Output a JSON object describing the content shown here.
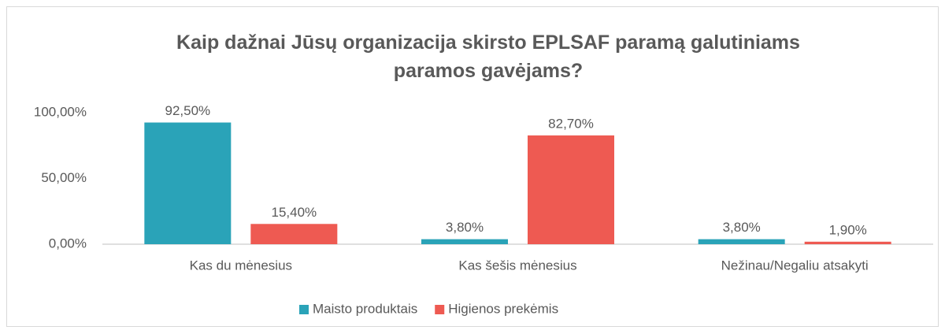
{
  "chart_data": {
    "type": "bar",
    "title": "Kaip dažnai Jūsų organizacija skirsto EPLSAF paramą galutiniams paramos gavėjams?",
    "categories": [
      "Kas du mėnesius",
      "Kas šešis mėnesius",
      "Nežinau/Negaliu atsakyti"
    ],
    "series": [
      {
        "name": "Maisto produktais",
        "color": "#2aa3b8",
        "values": [
          92.5,
          3.8,
          3.8
        ],
        "value_labels": [
          "92,50%",
          "3,80%",
          "3,80%"
        ]
      },
      {
        "name": "Higienos prekėmis",
        "color": "#ee5a52",
        "values": [
          15.4,
          82.7,
          1.9
        ],
        "value_labels": [
          "15,40%",
          "82,70%",
          "1,90%"
        ]
      }
    ],
    "ylim": [
      0,
      100
    ],
    "yticks": [
      {
        "value": 0,
        "label": "0,00%"
      },
      {
        "value": 50,
        "label": "50,00%"
      },
      {
        "value": 100,
        "label": "100,00%"
      }
    ],
    "grid": false,
    "legend": "bottom"
  }
}
